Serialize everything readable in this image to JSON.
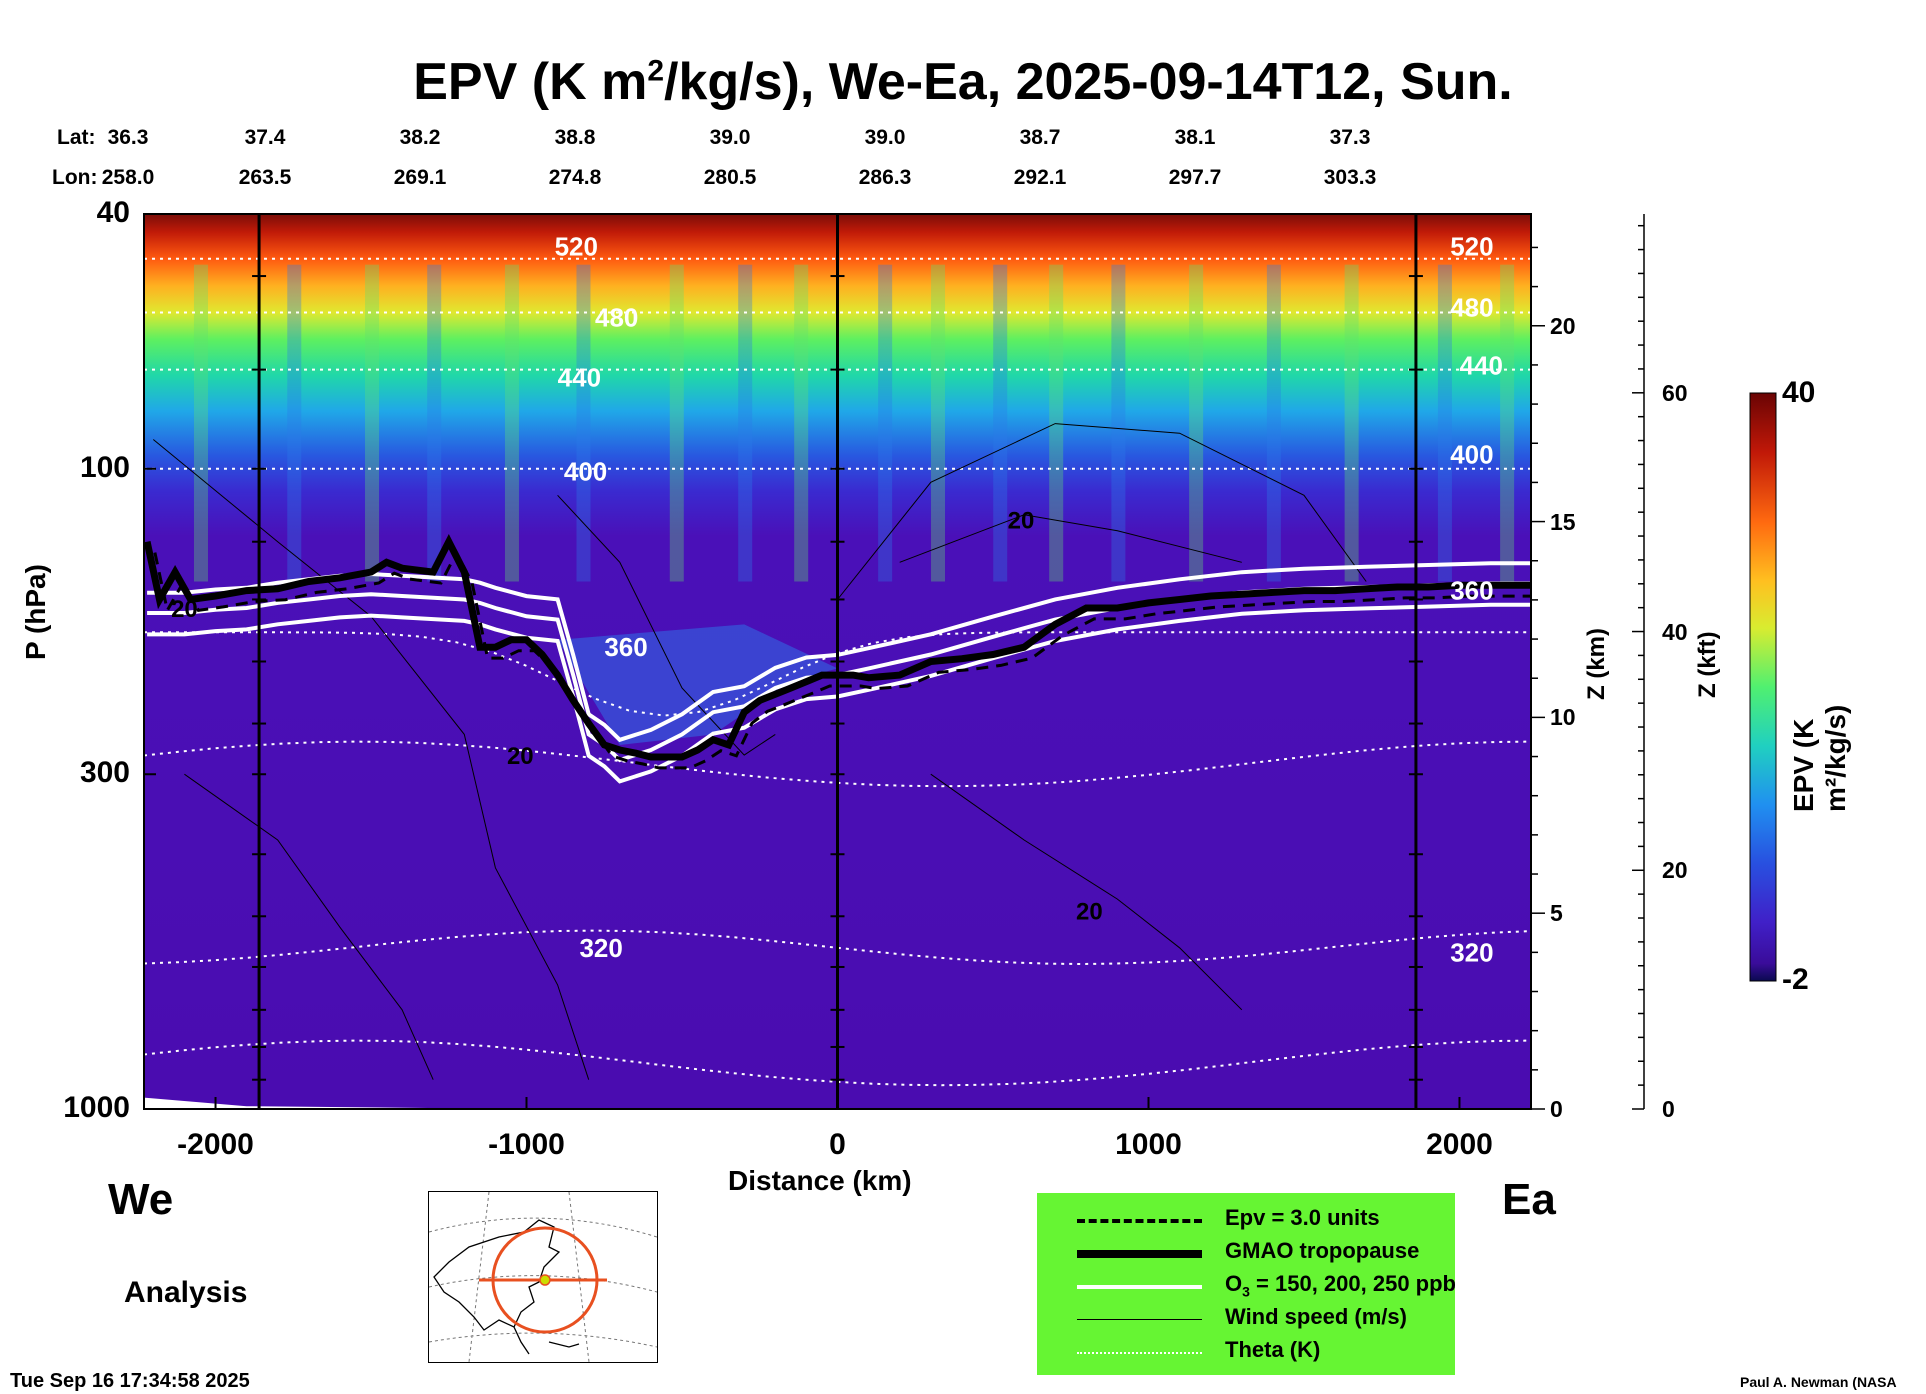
{
  "chart_data": {
    "type": "heatmap",
    "title_main": "EPV (K m",
    "title_sup": "2",
    "title_rest": "/kg/s), We-Ea, 2025-09-14T12, Sun.",
    "xlabel": "Distance (km)",
    "ylabel": "P (hPa)",
    "z_km_label": "Z (km)",
    "z_kft_label": "Z (kft)",
    "colorbar_label": "EPV (K m²/kg/s)",
    "colorbar_range": [
      -2,
      40
    ],
    "colorbar_labels": [
      "40",
      "-2"
    ],
    "xlim": [
      -2230,
      2230
    ],
    "ylim_hPa": [
      1000,
      40
    ],
    "x_ticks": [
      -2000,
      -1000,
      0,
      1000,
      2000
    ],
    "x_tick_labels": [
      "-2000",
      "-1000",
      "0",
      "1000",
      "2000"
    ],
    "y_ticks": [
      40,
      100,
      300,
      1000
    ],
    "y_tick_labels": [
      "40",
      "100",
      "300",
      "1000"
    ],
    "z_km_ticks": [
      0,
      5,
      10,
      15,
      20
    ],
    "z_km_tick_labels": [
      "0",
      "5",
      "10",
      "15",
      "20"
    ],
    "z_kft_ticks": [
      0,
      20,
      40,
      60
    ],
    "z_kft_tick_labels": [
      "0",
      "20",
      "40",
      "60"
    ],
    "lat_label": "Lat:",
    "lon_label": "Lon:",
    "latitudes": [
      "36.3",
      "37.4",
      "38.2",
      "38.8",
      "39.0",
      "39.0",
      "38.7",
      "38.1",
      "37.3"
    ],
    "longitudes": [
      "258.0",
      "263.5",
      "269.1",
      "274.8",
      "280.5",
      "286.3",
      "292.1",
      "297.7",
      "303.3"
    ],
    "vertical_markers_km": [
      -1860,
      0,
      1860
    ],
    "theta_contours": [
      {
        "label": "520",
        "pressure_hPa": 47
      },
      {
        "label": "480",
        "pressure_hPa": 57
      },
      {
        "label": "440",
        "pressure_hPa": 70
      },
      {
        "label": "400",
        "pressure_hPa": 100
      },
      {
        "label": "360",
        "pressure_hPa": 180
      },
      {
        "label": "320",
        "pressure_hPa": 560
      }
    ],
    "theta_labels": [
      {
        "text": "520",
        "x_km": -840,
        "p_hPa": 45
      },
      {
        "text": "480",
        "x_km": -710,
        "p_hPa": 58
      },
      {
        "text": "440",
        "x_km": -830,
        "p_hPa": 72
      },
      {
        "text": "400",
        "x_km": -810,
        "p_hPa": 101
      },
      {
        "text": "360",
        "x_km": -680,
        "p_hPa": 190
      },
      {
        "text": "320",
        "x_km": -760,
        "p_hPa": 560
      },
      {
        "text": "520",
        "x_km": 2040,
        "p_hPa": 45
      },
      {
        "text": "480",
        "x_km": 2040,
        "p_hPa": 56
      },
      {
        "text": "440",
        "x_km": 2070,
        "p_hPa": 69
      },
      {
        "text": "400",
        "x_km": 2040,
        "p_hPa": 95
      },
      {
        "text": "360",
        "x_km": 2040,
        "p_hPa": 155
      },
      {
        "text": "320",
        "x_km": 2040,
        "p_hPa": 570
      }
    ],
    "wind_labels": [
      {
        "text": "20",
        "x_km": 590,
        "p_hPa": 120
      },
      {
        "text": "20",
        "x_km": -1020,
        "p_hPa": 280
      },
      {
        "text": "20",
        "x_km": 810,
        "p_hPa": 490
      },
      {
        "text": "20",
        "x_km": -2100,
        "p_hPa": 165
      }
    ],
    "tropopause_gmao": {
      "x_km": [
        -2220,
        -2180,
        -2130,
        -2080,
        -2000,
        -1900,
        -1800,
        -1700,
        -1600,
        -1500,
        -1450,
        -1400,
        -1300,
        -1250,
        -1200,
        -1150,
        -1100,
        -1050,
        -1000,
        -950,
        -900,
        -850,
        -800,
        -750,
        -700,
        -650,
        -600,
        -550,
        -500,
        -450,
        -400,
        -350,
        -300,
        -250,
        -200,
        -150,
        -100,
        -50,
        0,
        50,
        100,
        200,
        300,
        400,
        500,
        600,
        700,
        800,
        900,
        1000,
        1100,
        1200,
        1300,
        1400,
        1500,
        1600,
        1700,
        1800,
        1900,
        2000,
        2100,
        2230
      ],
      "p_hPa": [
        130,
        160,
        145,
        160,
        158,
        155,
        154,
        150,
        148,
        145,
        140,
        143,
        145,
        130,
        145,
        190,
        190,
        185,
        185,
        195,
        210,
        230,
        250,
        270,
        275,
        278,
        282,
        282,
        282,
        275,
        265,
        270,
        240,
        230,
        225,
        220,
        215,
        210,
        210,
        210,
        212,
        210,
        200,
        198,
        195,
        190,
        175,
        165,
        165,
        162,
        160,
        158,
        157,
        156,
        155,
        155,
        154,
        153,
        153,
        152,
        152,
        152
      ]
    },
    "ozone_200ppb": {
      "x_km": [
        -2220,
        -2100,
        -2000,
        -1900,
        -1800,
        -1700,
        -1600,
        -1500,
        -1400,
        -1300,
        -1200,
        -1150,
        -1100,
        -1000,
        -900,
        -850,
        -800,
        -750,
        -700,
        -600,
        -500,
        -400,
        -300,
        -200,
        -100,
        0,
        100,
        300,
        500,
        700,
        900,
        1100,
        1300,
        1500,
        1700,
        1900,
        2100,
        2230
      ],
      "p_hPa": [
        168,
        168,
        166,
        165,
        162,
        160,
        158,
        157,
        158,
        159,
        160,
        162,
        165,
        170,
        172,
        210,
        260,
        270,
        285,
        275,
        260,
        240,
        235,
        220,
        212,
        210,
        205,
        195,
        183,
        172,
        165,
        160,
        156,
        154,
        153,
        152,
        151,
        151
      ]
    }
  },
  "labels": {
    "west": "We",
    "east": "Ea",
    "analysis": "Analysis",
    "timestamp": "Tue Sep 16 17:34:58 2025",
    "credit": "Paul A. Newman (NASA"
  },
  "legend": {
    "epv": "Epv = 3.0 units",
    "tropopause": "GMAO tropopause",
    "ozone_pre": "O",
    "ozone_sub": "3",
    "ozone_post": " = 150, 200, 250 ppb",
    "wind": "Wind speed (m/s)",
    "theta": "Theta (K)"
  },
  "colors": {
    "legend_bg": "#66f533",
    "background_fill": "#4a0cb8",
    "map_marker": "#e85020"
  }
}
